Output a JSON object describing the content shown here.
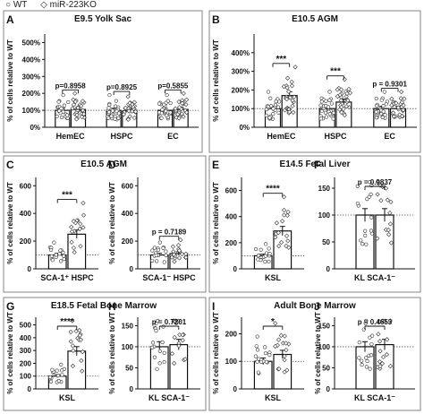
{
  "legend": {
    "wt_label": "WT",
    "ko_label": "miR-223KO"
  },
  "chart_data": [
    {
      "id": "A",
      "type": "bar",
      "title": "E9.5 Yolk Sac",
      "ylabel": "% of cells relative to WT",
      "ylim": [
        0,
        550
      ],
      "yticks": [
        0,
        100,
        200,
        300,
        400,
        500
      ],
      "yticklabels": [
        "0%",
        "100%",
        "200%",
        "300%",
        "400%",
        "500%"
      ],
      "categories": [
        "HemEC",
        "HSPC",
        "EC"
      ],
      "series": [
        {
          "name": "WT",
          "values": [
            100,
            100,
            100
          ]
        },
        {
          "name": "miR-223KO",
          "values": [
            105,
            95,
            105
          ]
        }
      ],
      "pvalues": [
        "p=0.8958",
        "p=0.8925",
        "p=0.5855"
      ]
    },
    {
      "id": "B",
      "type": "bar",
      "title": "E10.5 AGM",
      "ylabel": "% of cells relative to WT",
      "ylim": [
        0,
        500
      ],
      "yticks": [
        0,
        100,
        200,
        300,
        400
      ],
      "yticklabels": [
        "0%",
        "100%",
        "200%",
        "300%",
        "400%"
      ],
      "categories": [
        "HemEC",
        "HSPC",
        "EC"
      ],
      "series": [
        {
          "name": "WT",
          "values": [
            100,
            100,
            100
          ]
        },
        {
          "name": "miR-223KO",
          "values": [
            170,
            135,
            100
          ]
        }
      ],
      "pvalues": [
        "***",
        "***",
        "p = 0.9301"
      ]
    },
    {
      "id": "C",
      "type": "bar",
      "title": "E10.5 AGM",
      "ylabel": "% of cells relative to WT",
      "ylim": [
        0,
        660
      ],
      "yticks": [
        0,
        200,
        400,
        600
      ],
      "yticklabels": [
        "0",
        "200",
        "400",
        "600"
      ],
      "categories": [
        "SCA-1⁺ HSPC"
      ],
      "series": [
        {
          "name": "WT",
          "values": [
            100
          ]
        },
        {
          "name": "miR-223KO",
          "values": [
            250
          ]
        }
      ],
      "pvalues": [
        "***"
      ]
    },
    {
      "id": "D",
      "type": "bar",
      "title": "",
      "ylabel": "% of cells relative to WT",
      "ylim": [
        0,
        660
      ],
      "yticks": [
        0,
        200,
        400,
        600
      ],
      "yticklabels": [
        "0",
        "200",
        "400",
        "600"
      ],
      "categories": [
        "SCA-1⁻ HSPC"
      ],
      "series": [
        {
          "name": "WT",
          "values": [
            100
          ]
        },
        {
          "name": "miR-223KO",
          "values": [
            110
          ]
        }
      ],
      "pvalues": [
        "p = 0.7189"
      ]
    },
    {
      "id": "E",
      "type": "bar",
      "title": "E14.5 Fetal Liver",
      "ylabel": "% of cells relative to WT",
      "ylim": [
        0,
        700
      ],
      "yticks": [
        0,
        200,
        400,
        600
      ],
      "yticklabels": [
        "0",
        "200",
        "400",
        "600"
      ],
      "categories": [
        "KSL"
      ],
      "series": [
        {
          "name": "WT",
          "values": [
            100
          ]
        },
        {
          "name": "miR-223KO",
          "values": [
            290
          ]
        }
      ],
      "pvalues": [
        "****"
      ]
    },
    {
      "id": "F",
      "type": "bar",
      "title": "",
      "ylabel": "",
      "ylim": [
        0,
        170
      ],
      "yticks": [
        0,
        50,
        100,
        150
      ],
      "yticklabels": [
        "0",
        "50",
        "100",
        "150"
      ],
      "categories": [
        "KL SCA-1⁻"
      ],
      "series": [
        {
          "name": "WT",
          "values": [
            100
          ]
        },
        {
          "name": "miR-223KO",
          "values": [
            100
          ]
        }
      ],
      "pvalues": [
        "p = 0.9837"
      ]
    },
    {
      "id": "G",
      "type": "bar",
      "title": "E18.5 Fetal Bone Marrow",
      "ylabel": "% of cells relative to WT",
      "ylim": [
        0,
        560
      ],
      "yticks": [
        0,
        100,
        200,
        300,
        400,
        500
      ],
      "yticklabels": [
        "0",
        "100",
        "200",
        "300",
        "400",
        "500"
      ],
      "categories": [
        "KSL"
      ],
      "series": [
        {
          "name": "WT",
          "values": [
            100
          ]
        },
        {
          "name": "miR-223KO",
          "values": [
            295
          ]
        }
      ],
      "pvalues": [
        "****"
      ]
    },
    {
      "id": "H",
      "type": "bar",
      "title": "",
      "ylabel": "% of cells relative to WT",
      "ylim": [
        0,
        170
      ],
      "yticks": [
        0,
        50,
        100,
        150
      ],
      "yticklabels": [
        "0",
        "50",
        "100",
        "150"
      ],
      "categories": [
        "KL SCA-1⁻"
      ],
      "series": [
        {
          "name": "WT",
          "values": [
            100
          ]
        },
        {
          "name": "miR-223KO",
          "values": [
            105
          ]
        }
      ],
      "pvalues": [
        "p = 0.7201"
      ]
    },
    {
      "id": "I",
      "type": "bar",
      "title": "Adult Bone Marrow",
      "ylabel": "% of cells relative to WT",
      "ylim": [
        0,
        260
      ],
      "yticks": [
        0,
        100,
        200
      ],
      "yticklabels": [
        "0",
        "100",
        "200"
      ],
      "categories": [
        "KSL"
      ],
      "series": [
        {
          "name": "WT",
          "values": [
            100
          ]
        },
        {
          "name": "miR-223KO",
          "values": [
            125
          ]
        }
      ],
      "pvalues": [
        "*"
      ]
    },
    {
      "id": "J",
      "type": "bar",
      "title": "",
      "ylabel": "% of cells relative to WT",
      "ylim": [
        0,
        170
      ],
      "yticks": [
        0,
        50,
        100,
        150
      ],
      "yticklabels": [
        "0",
        "50",
        "100",
        "150"
      ],
      "categories": [
        "KL SCA-1⁻"
      ],
      "series": [
        {
          "name": "WT",
          "values": [
            100
          ]
        },
        {
          "name": "miR-223KO",
          "values": [
            105
          ]
        }
      ],
      "pvalues": [
        "p = 0.4653"
      ]
    }
  ]
}
